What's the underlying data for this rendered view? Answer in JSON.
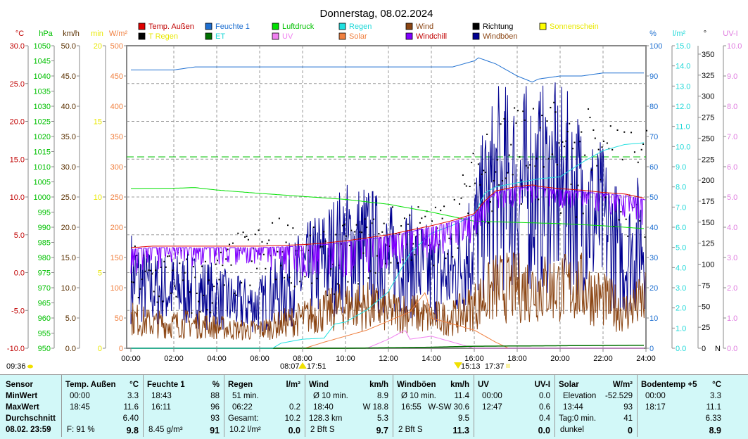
{
  "title": "Donnerstag, 08.02.2024",
  "legend": [
    {
      "label": "Temp. Außen",
      "swatch": "#e00000",
      "text": "#c00000"
    },
    {
      "label": "T Regen",
      "swatch": "#000000",
      "text": "#e8e800"
    },
    {
      "label": "Feuchte 1",
      "swatch": "#1e6fd0",
      "text": "#1e6fd0"
    },
    {
      "label": "ET",
      "swatch": "#007000",
      "text": "#20d8d8"
    },
    {
      "label": "Luftdruck",
      "swatch": "#00e000",
      "text": "#00c000"
    },
    {
      "label": "UV",
      "swatch": "#f080f0",
      "text": "#f080f0"
    },
    {
      "label": "Regen",
      "swatch": "#20e0e0",
      "text": "#20d8d8"
    },
    {
      "label": "Solar",
      "swatch": "#f08040",
      "text": "#f08040"
    },
    {
      "label": "Wind",
      "swatch": "#8b4513",
      "text": "#8b4513"
    },
    {
      "label": "Windchill",
      "swatch": "#8000ff",
      "text": "#c00000"
    },
    {
      "label": "Richtung",
      "swatch": "#000000",
      "text": "#000000"
    },
    {
      "label": "Windböen",
      "swatch": "#000090",
      "text": "#8b4513"
    },
    {
      "label": "Sonnenschein",
      "swatch": "#ffff00",
      "text": "#e8e800"
    }
  ],
  "chart_data": {
    "type": "line",
    "title": "Donnerstag, 08.02.2024",
    "x_ticks": [
      "00:00",
      "02:00",
      "04:00",
      "06:00",
      "08:00",
      "10:00",
      "12:00",
      "14:00",
      "16:00",
      "18:00",
      "20:00",
      "22:00",
      "24:00"
    ],
    "grid": true,
    "axes": [
      {
        "unit": "°C",
        "side": "left",
        "range": [
          -10,
          30
        ],
        "ticks": [
          "30.0",
          "25.0",
          "20.0",
          "15.0",
          "10.0",
          "5.0",
          "0.0",
          "-5.0",
          "-10.0"
        ],
        "color": "#c00000"
      },
      {
        "unit": "hPa",
        "side": "left",
        "range": [
          950,
          1050
        ],
        "ticks": [
          "1050",
          "1045",
          "1040",
          "1035",
          "1030",
          "1025",
          "1020",
          "1015",
          "1010",
          "1005",
          "1000",
          "995",
          "990",
          "985",
          "980",
          "975",
          "970",
          "965",
          "960",
          "955",
          "950"
        ],
        "color": "#00c000"
      },
      {
        "unit": "km/h",
        "side": "left",
        "range": [
          0,
          50
        ],
        "ticks": [
          "50.0",
          "45.0",
          "40.0",
          "35.0",
          "30.0",
          "25.0",
          "20.0",
          "15.0",
          "10.0",
          "5.0",
          "0.0"
        ],
        "color": "#5a3000"
      },
      {
        "unit": "min",
        "side": "left",
        "range": [
          0,
          20
        ],
        "ticks": [
          "20",
          "15",
          "10",
          "5",
          "0"
        ],
        "color": "#e8e800"
      },
      {
        "unit": "W/m²",
        "side": "left",
        "range": [
          0,
          500
        ],
        "ticks": [
          "500",
          "450",
          "400",
          "350",
          "300",
          "250",
          "200",
          "150",
          "100",
          "50",
          "0"
        ],
        "color": "#f08040"
      },
      {
        "unit": "%",
        "side": "right",
        "range": [
          0,
          100
        ],
        "ticks": [
          "100",
          "90",
          "80",
          "70",
          "60",
          "50",
          "40",
          "30",
          "20",
          "10",
          "0"
        ],
        "color": "#1e6fd0"
      },
      {
        "unit": "l/m²",
        "side": "right",
        "range": [
          0,
          15
        ],
        "ticks": [
          "15.0",
          "14.0",
          "13.0",
          "12.0",
          "11.0",
          "10.0",
          "9.0",
          "8.0",
          "7.0",
          "6.0",
          "5.0",
          "4.0",
          "3.0",
          "2.0",
          "1.0",
          "0.0"
        ],
        "color": "#20d8d8"
      },
      {
        "unit": "°",
        "side": "right",
        "range": [
          0,
          360
        ],
        "ticks": [
          "350",
          "325",
          "300",
          "275",
          "250",
          "225",
          "200",
          "175",
          "150",
          "125",
          "100",
          "75",
          "50",
          "25",
          "0"
        ],
        "extra_label": "N",
        "color": "#000000"
      },
      {
        "unit": "UV-I",
        "side": "right",
        "range": [
          0,
          10
        ],
        "ticks": [
          "10.0",
          "9.0",
          "8.0",
          "7.0",
          "6.0",
          "5.0",
          "4.0",
          "3.0",
          "2.0",
          "1.0",
          "0.0"
        ],
        "color": "#e080e0"
      }
    ],
    "reference_line": {
      "axis": "hPa",
      "value": 1013.25,
      "color": "#00c000"
    },
    "series": [
      {
        "name": "Temp. Außen",
        "axis": "°C",
        "color": "#e00000",
        "x": [
          0,
          1,
          2,
          3,
          4,
          5,
          6,
          7,
          8,
          9,
          10,
          11,
          12,
          13,
          14,
          15,
          16,
          16.5,
          17,
          18,
          18.75,
          19,
          20,
          21,
          22,
          23,
          24
        ],
        "y": [
          3.3,
          3.5,
          3.5,
          3.5,
          3.5,
          3.5,
          3.5,
          3.6,
          3.7,
          3.9,
          4.2,
          4.6,
          5.0,
          5.6,
          6.2,
          6.9,
          7.8,
          9.5,
          10.8,
          11.4,
          11.6,
          11.4,
          11.1,
          10.9,
          10.6,
          10.4,
          9.8
        ]
      },
      {
        "name": "Windchill",
        "axis": "°C",
        "color": "#8000ff",
        "x": [
          0,
          2,
          4,
          6,
          8,
          10,
          12,
          14,
          16,
          17,
          18,
          20,
          22,
          24
        ],
        "y": [
          2.0,
          3.0,
          3.2,
          3.0,
          2.0,
          1.8,
          2.8,
          4.2,
          6.5,
          10.5,
          11.4,
          11.0,
          10.5,
          8.5
        ]
      },
      {
        "name": "Feuchte 1",
        "axis": "%",
        "color": "#1e6fd0",
        "x": [
          0,
          2,
          3,
          4,
          6,
          8,
          10,
          12,
          14,
          15,
          16,
          16.2,
          17,
          18,
          18.7,
          19,
          20,
          21,
          22,
          23,
          24
        ],
        "y": [
          92,
          92,
          93,
          93,
          93,
          93,
          93,
          93,
          93,
          93,
          95,
          96,
          94,
          90,
          88,
          89,
          90,
          90,
          91,
          91,
          91
        ]
      },
      {
        "name": "Luftdruck",
        "axis": "hPa",
        "color": "#00e000",
        "x": [
          0,
          2,
          3,
          4,
          6,
          8,
          10,
          12,
          14,
          16,
          18,
          20,
          22,
          24
        ],
        "y": [
          1002.8,
          1002.9,
          1003.1,
          1002.3,
          1001.2,
          1000.2,
          999.2,
          997.6,
          995.0,
          992.0,
          991.6,
          991.2,
          990.5,
          989.5
        ]
      },
      {
        "name": "Regen",
        "axis": "l/m²",
        "color": "#20e0e0",
        "x": [
          0,
          6.6,
          7,
          8,
          9,
          9.5,
          10,
          11,
          12,
          13,
          14,
          15,
          16,
          16.5,
          17,
          18,
          19,
          20,
          21,
          22,
          23,
          24
        ],
        "y": [
          0,
          0,
          0.25,
          0.45,
          0.5,
          1.2,
          1.3,
          1.9,
          2.8,
          4.7,
          5.7,
          6.1,
          6.6,
          7.7,
          8.0,
          8.2,
          8.4,
          8.5,
          9.2,
          9.8,
          10.1,
          10.2
        ]
      },
      {
        "name": "Solar",
        "axis": "W/m²",
        "color": "#f08040",
        "x": [
          8.1,
          9,
          10,
          11,
          12,
          13,
          13.73,
          14,
          15,
          16,
          17,
          17.6
        ],
        "y": [
          0,
          10,
          20,
          30,
          45,
          60,
          93,
          50,
          40,
          30,
          10,
          0
        ]
      },
      {
        "name": "UV",
        "axis": "UV-I",
        "color": "#f080f0",
        "x": [
          0,
          11,
          12,
          12.78,
          13,
          14,
          15,
          16,
          24
        ],
        "y": [
          0,
          0,
          0.3,
          0.6,
          0.3,
          0.4,
          0.2,
          0,
          0
        ]
      },
      {
        "name": "Wind",
        "axis": "km/h",
        "color": "#8b4513",
        "x": [
          0,
          1,
          2,
          3,
          4,
          5,
          6,
          7,
          8,
          9,
          10,
          11,
          12,
          13,
          14,
          15,
          16,
          17,
          18,
          19,
          20,
          21,
          22,
          23,
          24
        ],
        "y": [
          5,
          4,
          4,
          4,
          3.5,
          3,
          3,
          4,
          5,
          6,
          7,
          7,
          6,
          6,
          5,
          5,
          7,
          10,
          10,
          10,
          10,
          10,
          8,
          6,
          8
        ]
      },
      {
        "name": "Windböen",
        "axis": "km/h",
        "color": "#000090",
        "x": [
          0,
          1,
          2,
          3,
          4,
          5,
          6,
          7,
          8,
          9,
          10,
          11,
          12,
          13,
          14,
          15,
          16,
          17,
          18,
          19,
          20,
          21,
          22,
          23,
          24
        ],
        "y": [
          10,
          8,
          8,
          8,
          7,
          6,
          6,
          8,
          10,
          12,
          14,
          14,
          12,
          12,
          10,
          10,
          15,
          22,
          22,
          22,
          22,
          20,
          17,
          12,
          16
        ]
      },
      {
        "name": "Richtung",
        "axis": "°",
        "color": "#000000",
        "x": [
          0,
          1,
          2,
          3,
          4,
          5,
          6,
          7,
          8,
          9,
          10,
          11,
          12,
          13,
          14,
          15,
          16,
          17,
          18,
          19,
          20,
          21,
          22,
          23,
          24
        ],
        "y": [
          90,
          80,
          90,
          70,
          80,
          100,
          110,
          120,
          110,
          100,
          110,
          120,
          130,
          140,
          130,
          150,
          200,
          230,
          240,
          220,
          230,
          220,
          210,
          200,
          200
        ]
      },
      {
        "name": "ET",
        "axis": "l/m²",
        "color": "#007000",
        "x": [
          0,
          10,
          14,
          16,
          24
        ],
        "y": [
          0,
          0,
          0.05,
          0.1,
          0.15
        ]
      }
    ]
  },
  "events": {
    "moon": "09:36",
    "sunrise": "08:07",
    "sunset": "17:51",
    "moonrise": "15:13",
    "moonset": "17:37"
  },
  "table": {
    "sensor": {
      "header": "Sensor",
      "rows": [
        "MinWert",
        "MaxWert",
        "Durchschnitt",
        "08.02. 23:59"
      ]
    },
    "temp": {
      "header": "Temp. Außen",
      "unit": "°C",
      "min_t": "00:00",
      "min_v": "3.3",
      "max_t": "18:45",
      "max_v": "11.6",
      "avg": "6.40",
      "cur_l": "F: 91 %",
      "cur_v": "9.8"
    },
    "hum": {
      "header": "Feuchte 1",
      "unit": "%",
      "min_t": "18:43",
      "min_v": "88",
      "max_t": "16:11",
      "max_v": "96",
      "avg": "93",
      "cur_l": "8.45 g/m³",
      "cur_v": "91"
    },
    "rain": {
      "header": "Regen",
      "unit": "l/m²",
      "min_t": "51 min.",
      "min_v": "",
      "max_t": "06:22",
      "max_v": "0.2",
      "avg_l": "Gesamt:",
      "avg": "10.2",
      "cur_l": "10.2 l/m²",
      "cur_v": "0.0"
    },
    "wind": {
      "header": "Wind",
      "unit": "km/h",
      "min_t": "Ø 10 min.",
      "min_v": "8.9",
      "max_t": "18:40",
      "max_v": "W 18.8",
      "avg_l": "128.3 km",
      "avg": "5.3",
      "cur_l": "2 Bft S",
      "cur_v": "9.7"
    },
    "gust": {
      "header": "Windböen",
      "unit": "km/h",
      "min_t": "Ø 10 min.",
      "min_v": "11.4",
      "max_t": "16:55",
      "max_v": "W-SW 30.6",
      "avg": "9.5",
      "cur_l": "2 Bft S",
      "cur_v": "11.3"
    },
    "uv": {
      "header": "UV",
      "unit": "UV-I",
      "min_t": "00:00",
      "min_v": "0.0",
      "max_t": "12:47",
      "max_v": "0.6",
      "avg": "0.4",
      "cur_v": "0.0"
    },
    "solar": {
      "header": "Solar",
      "unit": "W/m²",
      "min_t": "Elevation",
      "min_v": "-52.529",
      "max_t": "13:44",
      "max_v": "93",
      "avg_l": "Tag:0 min.",
      "avg": "41",
      "cur_l": "dunkel",
      "cur_v": "0"
    },
    "soil": {
      "header": "Bodentemp +5",
      "unit": "°C",
      "min_t": "00:00",
      "min_v": "3.3",
      "max_t": "18:17",
      "max_v": "11.1",
      "avg": "6.33",
      "cur_v": "8.9"
    }
  }
}
